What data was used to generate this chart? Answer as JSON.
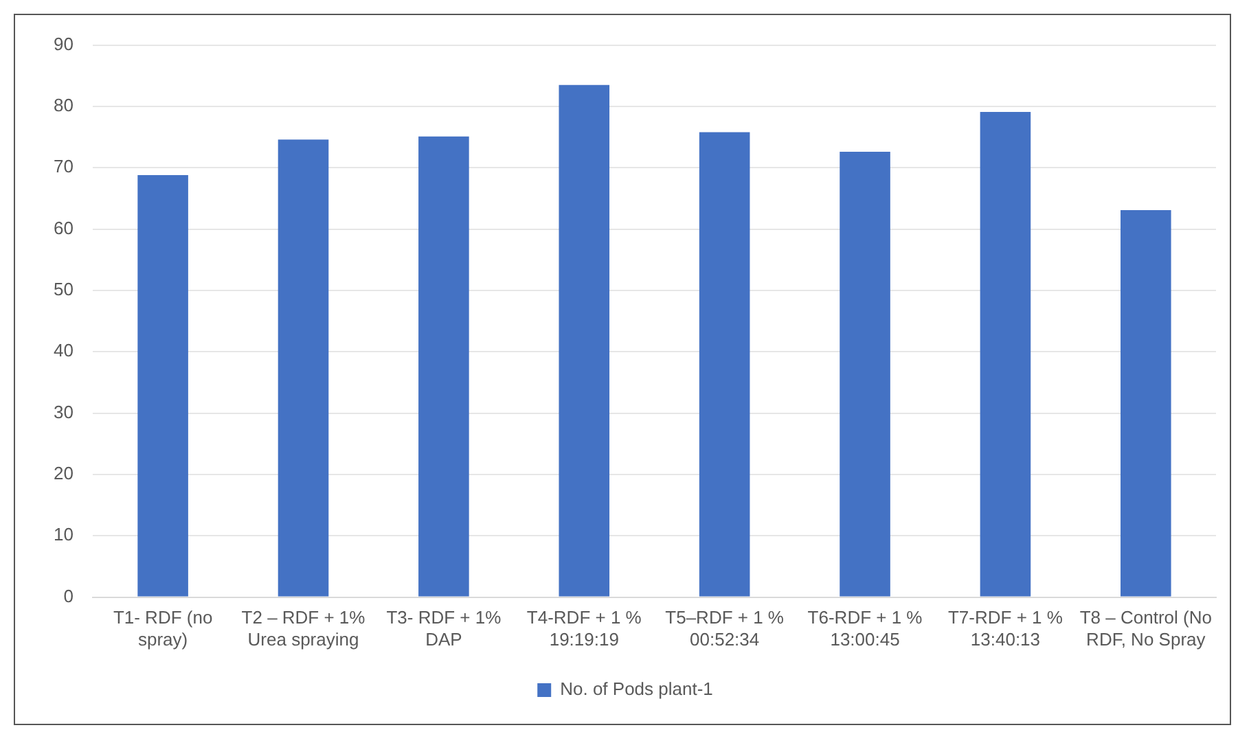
{
  "chart_data": {
    "type": "bar",
    "categories": [
      "T1- RDF (no spray)",
      "T2 – RDF + 1% Urea spraying",
      "T3- RDF + 1% DAP",
      "T4-RDF + 1 % 19:19:19",
      "T5–RDF + 1 % 00:52:34",
      "T6-RDF + 1 % 13:00:45",
      "T7-RDF + 1 % 13:40:13",
      "T8 – Control (No RDF, No Spray"
    ],
    "series": [
      {
        "name": "No. of Pods plant-1",
        "color": "#4472c4",
        "values": [
          68.8,
          74.6,
          75.1,
          83.5,
          75.8,
          72.6,
          79.1,
          63.1
        ]
      }
    ],
    "ylim": [
      0,
      90
    ],
    "yticks": [
      0,
      10,
      20,
      30,
      40,
      50,
      60,
      70,
      80,
      90
    ],
    "grid": "y",
    "legend": "bottom"
  }
}
